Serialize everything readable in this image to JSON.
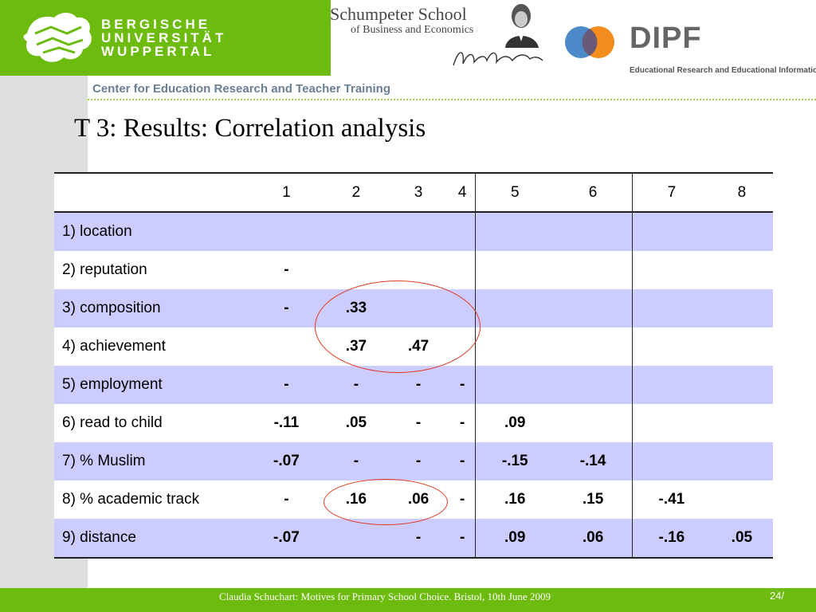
{
  "header": {
    "university_lines": [
      "BERGISCHE",
      "UNIVERSITÄT",
      "WUPPERTAL"
    ],
    "school_name": "Schumpeter School",
    "school_sub": "of Business and Economics",
    "dipf_name": "DIPF",
    "dipf_sub": "Educational Research and Educational Information",
    "colors": {
      "brand_green": "#6cbb0e",
      "dipf_orange": "#f28c1c",
      "dipf_blue": "#2b74bf"
    }
  },
  "subheader": "Center for Education Research and Teacher Training",
  "title": "T 3: Results: Correlation analysis",
  "table": {
    "columns": [
      "1",
      "2",
      "3",
      "4",
      "5",
      "6",
      "7",
      "8"
    ],
    "rows": [
      {
        "label": "1) location",
        "values": [
          "",
          "",
          "",
          "",
          "",
          "",
          "",
          ""
        ]
      },
      {
        "label": "2) reputation",
        "values": [
          "-",
          "",
          "",
          "",
          "",
          "",
          "",
          ""
        ]
      },
      {
        "label": "3) composition",
        "values": [
          "-",
          ".33",
          "",
          "",
          "",
          "",
          "",
          ""
        ]
      },
      {
        "label": "4) achievement",
        "values": [
          "",
          ".37",
          ".47",
          "",
          "",
          "",
          "",
          ""
        ]
      },
      {
        "label": "5) employment",
        "values": [
          "-",
          "-",
          "-",
          "-",
          "",
          "",
          "",
          ""
        ]
      },
      {
        "label": "6) read to child",
        "values": [
          "-.11",
          ".05",
          "-",
          "-",
          ".09",
          "",
          "",
          ""
        ]
      },
      {
        "label": "7) % Muslim",
        "values": [
          "-.07",
          "-",
          "-",
          "-",
          "-.15",
          "-.14",
          "",
          ""
        ]
      },
      {
        "label": "8) % academic track",
        "values": [
          "-",
          ".16",
          ".06",
          "-",
          ".16",
          ".15",
          "-.41",
          ""
        ]
      },
      {
        "label": "9) distance",
        "values": [
          "-.07",
          "",
          "-",
          "-",
          ".09",
          ".06",
          "-.16",
          ".05"
        ]
      }
    ],
    "row_colors": {
      "shaded": "#ccccff",
      "plain": "#ffffff"
    },
    "highlight_color": "#e23a22"
  },
  "footer": {
    "text": "Claudia Schuchart: Motives for Primary School Choice.  Bristol, 10th June 2009",
    "page": "24/"
  }
}
